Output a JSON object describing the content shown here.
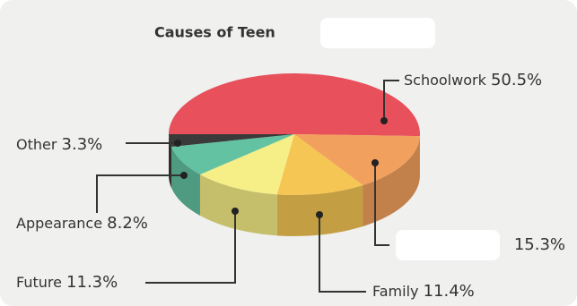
{
  "chart_data": {
    "type": "pie",
    "title": "Causes of Teen",
    "categories": [
      "Schoolwork",
      null,
      "Family",
      "Future",
      "Appearance",
      "Other"
    ],
    "values": [
      50.5,
      15.3,
      11.4,
      11.3,
      8.2,
      3.3
    ],
    "value_labels": [
      "50.5%",
      "15.3%",
      "11.4%",
      "11.3%",
      "8.2%",
      "3.3%"
    ],
    "colors": [
      "#e8505b",
      "#f2a05e",
      "#f5c653",
      "#f6ee86",
      "#62c2a2",
      "#3a3a3a"
    ]
  }
}
